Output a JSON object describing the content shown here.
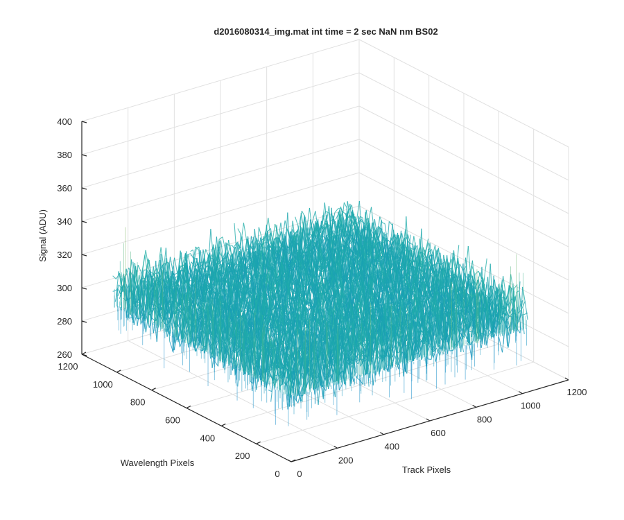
{
  "chart_data": {
    "type": "surface",
    "title": "d2016080314_img.mat int time = 2 sec  NaN nm BS02",
    "xlabel": "Track Pixels",
    "ylabel": "Wavelength Pixels",
    "zlabel": "Signal (ADU)",
    "xlim": [
      0,
      1200
    ],
    "ylim": [
      0,
      1200
    ],
    "zlim": [
      260,
      400
    ],
    "x_ticks": [
      "0",
      "200",
      "400",
      "600",
      "800",
      "1000",
      "1200"
    ],
    "y_ticks": [
      "0",
      "200",
      "400",
      "600",
      "800",
      "1000",
      "1200"
    ],
    "z_ticks": [
      "260",
      "280",
      "300",
      "320",
      "340",
      "360",
      "380",
      "400"
    ],
    "surface": {
      "x_range": [
        1,
        1024
      ],
      "y_range": [
        1,
        1024
      ],
      "z_mean": 308,
      "z_noise_std": 12,
      "z_range_approx": [
        270,
        380
      ],
      "colormap": "parula"
    },
    "grid": true,
    "colors": {
      "colormap_low": "#0b86c9",
      "colormap_mid": "#22b0a6",
      "colormap_high": "#e0c83c"
    }
  }
}
